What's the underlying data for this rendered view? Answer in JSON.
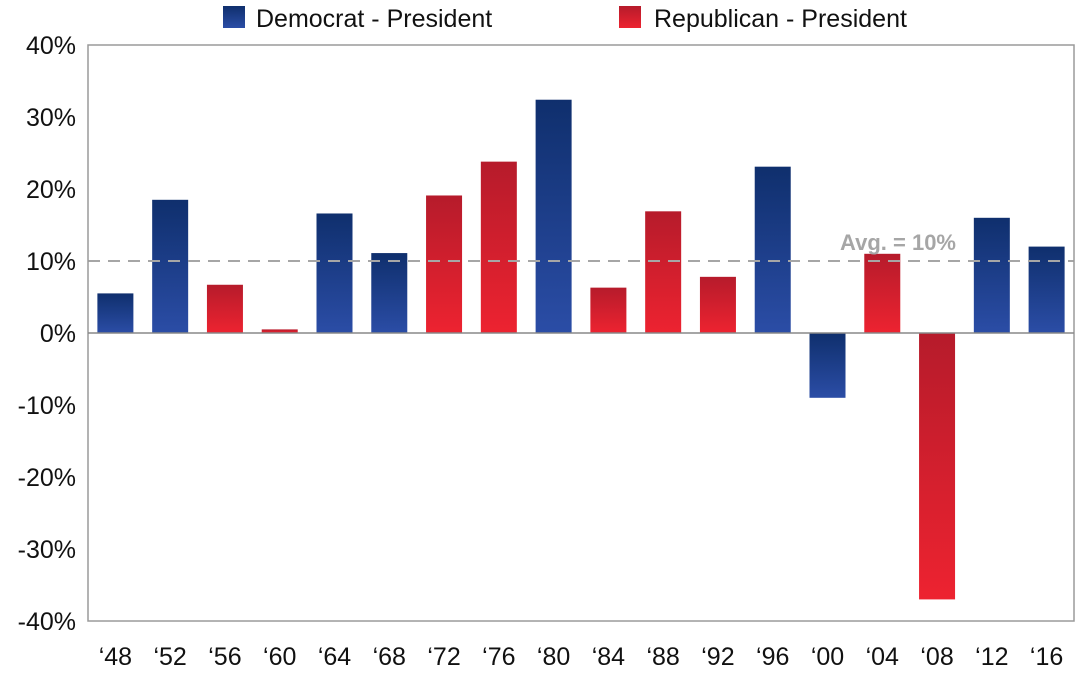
{
  "chart_data": {
    "type": "bar",
    "title": "",
    "xlabel": "",
    "ylabel": "",
    "ylim": [
      -40,
      40
    ],
    "yticks": [
      40,
      30,
      20,
      10,
      0,
      -10,
      -20,
      -30,
      -40
    ],
    "ytick_suffix": "%",
    "grid": false,
    "legend_position": "top",
    "categories": [
      "‘48",
      "‘52",
      "‘56",
      "‘60",
      "‘64",
      "‘68",
      "‘72",
      "‘76",
      "‘80",
      "‘84",
      "‘88",
      "‘92",
      "‘96",
      "‘00",
      "‘04",
      "‘08",
      "‘12",
      "‘16"
    ],
    "values": [
      5.5,
      18.5,
      6.7,
      0.5,
      16.6,
      11.1,
      19.1,
      23.8,
      32.4,
      6.3,
      16.9,
      7.8,
      23.1,
      -9.0,
      11.0,
      -37.0,
      16.0,
      12.0
    ],
    "party": [
      "D",
      "D",
      "R",
      "R",
      "D",
      "D",
      "R",
      "R",
      "D",
      "R",
      "R",
      "R",
      "D",
      "D",
      "R",
      "R",
      "D",
      "D"
    ],
    "series": [
      {
        "key": "D",
        "name": "Democrat - President",
        "color": "#1f3e8f"
      },
      {
        "key": "R",
        "name": "Republican - President",
        "color": "#d9202a"
      }
    ],
    "reference_line": {
      "value": 10,
      "label": "Avg. = 10%",
      "color": "#a6a6a6"
    }
  }
}
